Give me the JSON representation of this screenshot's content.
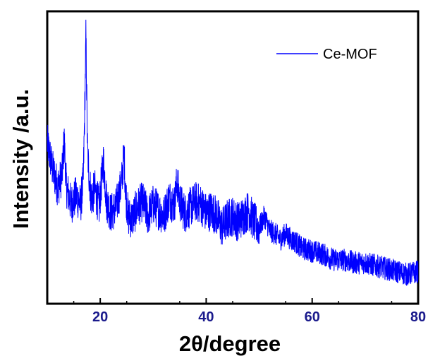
{
  "chart_data": {
    "type": "line",
    "xlabel": "2θ/degree",
    "ylabel": "Intensity /a.u.",
    "xlim": [
      10,
      80
    ],
    "ylim": [
      0,
      100
    ],
    "x_ticks": [
      20,
      40,
      60,
      80
    ],
    "x_tick_labels": [
      "20",
      "40",
      "60",
      "80"
    ],
    "y_ticks_shown": false,
    "grid": false,
    "legend_position": "top-right",
    "colors": {
      "series": "#0000ff",
      "tick_labels": "#1a1a8c",
      "axes": "#000000"
    },
    "series": [
      {
        "name": "Ce-MOF",
        "x": [
          10,
          11,
          12,
          12.8,
          13.2,
          13.6,
          14.5,
          15.5,
          16.3,
          16.8,
          17.1,
          17.3,
          17.6,
          17.9,
          18.3,
          19,
          19.8,
          20.6,
          21.2,
          22,
          23,
          24,
          24.5,
          24.8,
          25.3,
          26,
          27,
          28,
          29,
          30,
          31,
          32,
          33,
          34,
          34.5,
          35,
          36,
          37,
          38,
          39,
          40,
          41,
          42,
          43,
          44,
          45,
          46,
          47,
          48,
          49,
          50,
          51,
          52,
          53,
          54,
          55,
          56,
          57,
          58,
          60,
          62,
          64,
          66,
          68,
          70,
          72,
          74,
          76,
          78,
          80
        ],
        "y": [
          55,
          46,
          40,
          44,
          56,
          40,
          34,
          37,
          34,
          42,
          68,
          92,
          52,
          44,
          36,
          39,
          33,
          49,
          35,
          31,
          33,
          41,
          51,
          38,
          30,
          29,
          33,
          35,
          30,
          34,
          32,
          30,
          36,
          34,
          42,
          35,
          31,
          33,
          35,
          34,
          31,
          32,
          30,
          26,
          29,
          30,
          28,
          30,
          32,
          28,
          26,
          30,
          25,
          24,
          22,
          24,
          22,
          21,
          19,
          18,
          17,
          15,
          15,
          14,
          14,
          13,
          12,
          11,
          10,
          11
        ]
      }
    ]
  }
}
